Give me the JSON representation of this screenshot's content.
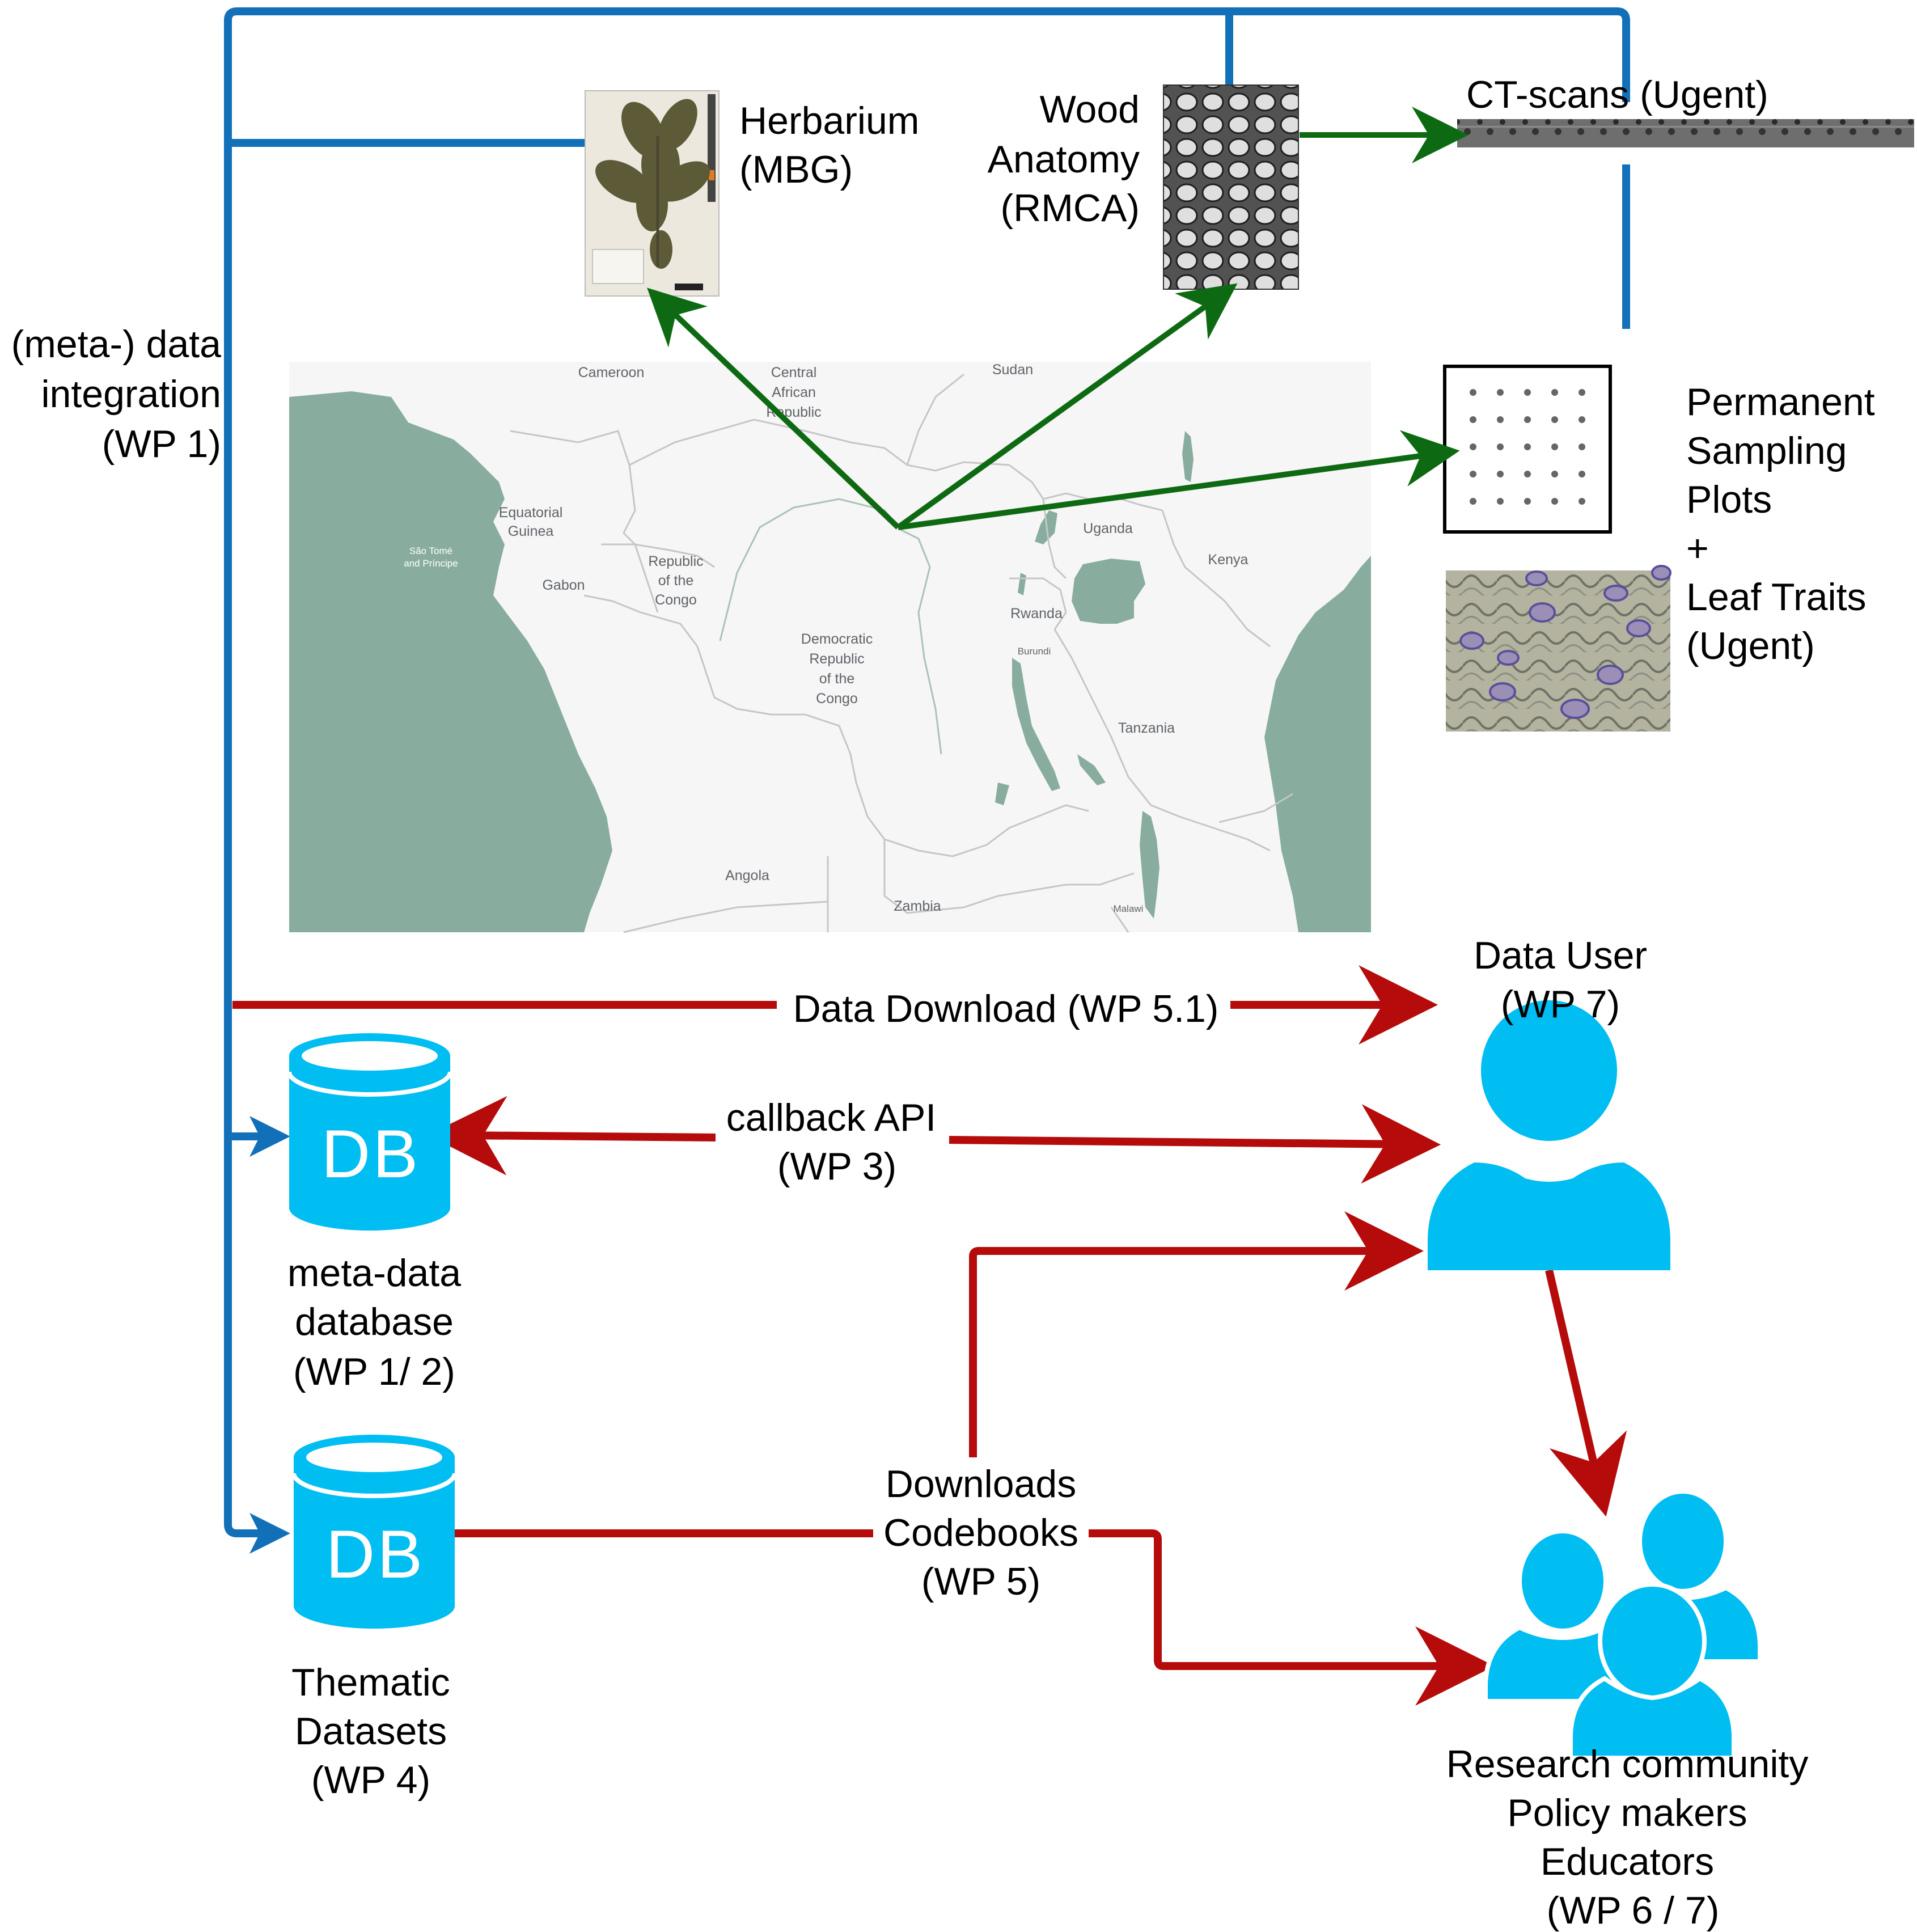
{
  "colors": {
    "integration_blue": "#1270b8",
    "flow_red": "#b50b0b",
    "source_green": "#0e6a12",
    "db_cyan": "#00bdf2",
    "user_cyan": "#00bdf2",
    "water": "#88ad9f"
  },
  "labels": {
    "integration": [
      "(meta-) data",
      "integration",
      "(WP 1)"
    ],
    "herbarium": [
      "Herbarium",
      "(MBG)"
    ],
    "wood": [
      "Wood",
      "Anatomy",
      "(RMCA)"
    ],
    "ctscans": "CT-scans (Ugent)",
    "plots": [
      "Permanent",
      "Sampling",
      "Plots",
      "+",
      "Leaf Traits",
      "(Ugent)"
    ],
    "data_download": "Data Download (WP 5.1)",
    "callback": [
      "callback API",
      "(WP 3)"
    ],
    "metadata_db": [
      "meta-data",
      "database",
      "(WP 1/ 2)"
    ],
    "thematic": [
      "Thematic",
      "Datasets",
      "(WP 4)"
    ],
    "downloads": [
      "Downloads",
      "Codebooks",
      "(WP 5)"
    ],
    "data_user": [
      "Data User",
      "(WP 7)"
    ],
    "community": [
      "Research community",
      "Policy makers",
      "Educators",
      "(WP 6 / 7)"
    ],
    "db_icon_text": "DB"
  },
  "map_labels": {
    "cameroon": "Cameroon",
    "car": [
      "Central",
      "African",
      "Republic"
    ],
    "sudan": "Sudan",
    "eq_guinea": [
      "Equatorial",
      "Guinea"
    ],
    "sao_tome": [
      "São Tomé",
      "and Príncipe"
    ],
    "gabon": "Gabon",
    "roc": [
      "Republic",
      "of the",
      "Congo"
    ],
    "drc": [
      "Democratic",
      "Republic",
      "of the",
      "Congo"
    ],
    "uganda": "Uganda",
    "kenya": "Kenya",
    "rwanda": "Rwanda",
    "burundi": "Burundi",
    "tanzania": "Tanzania",
    "angola": "Angola",
    "zambia": "Zambia",
    "malawi": "Malawi"
  }
}
